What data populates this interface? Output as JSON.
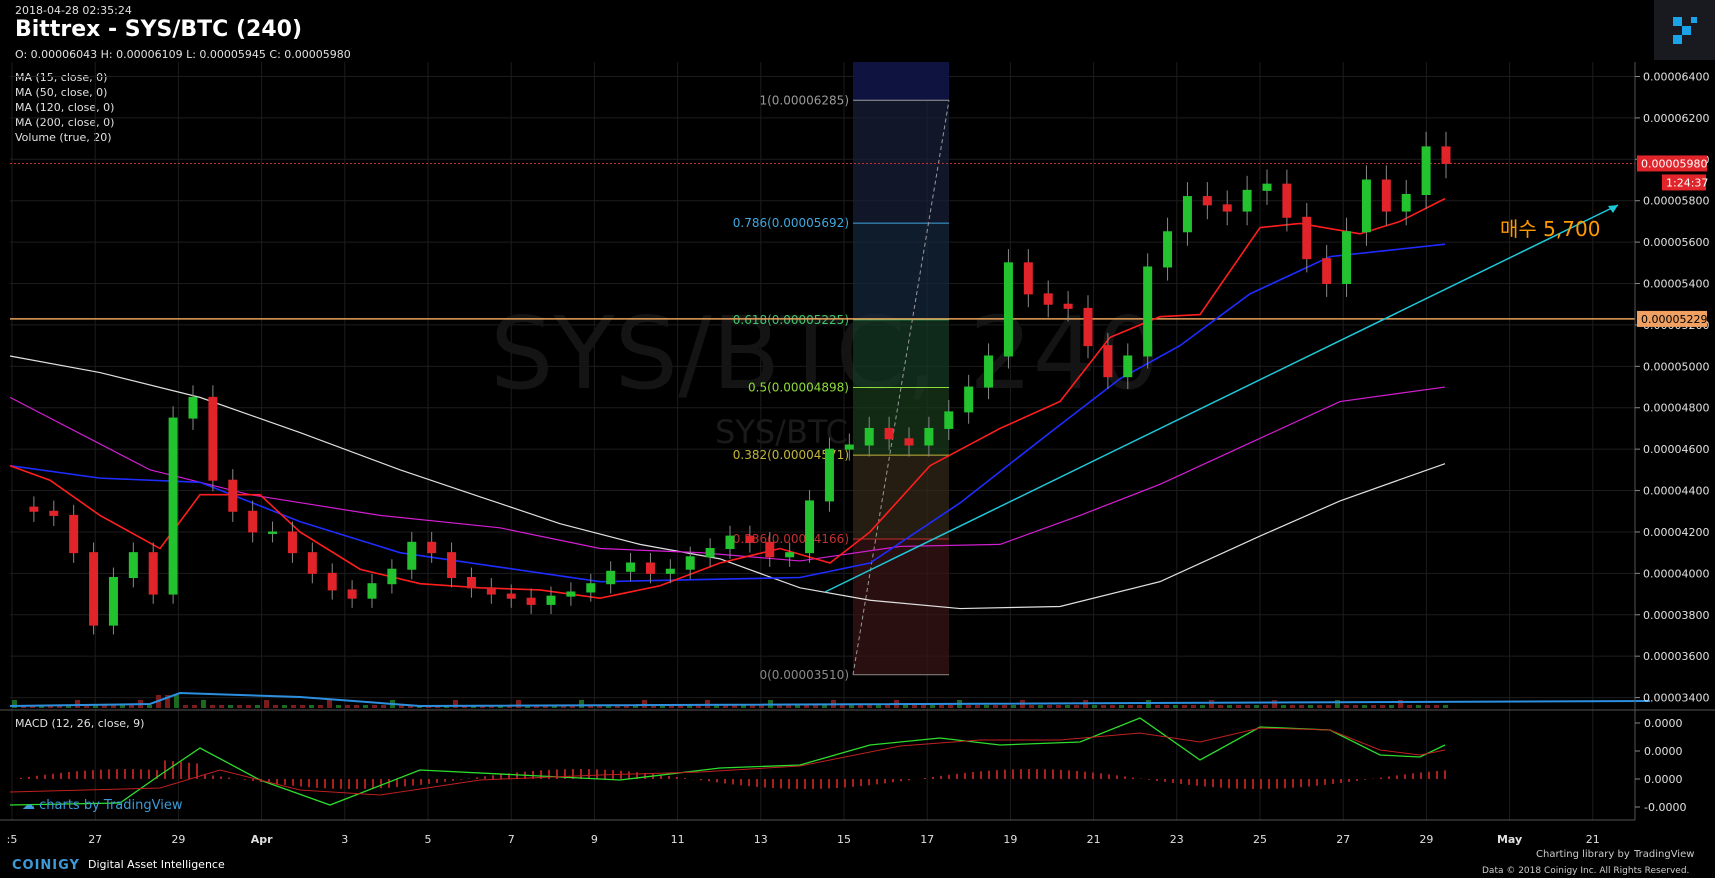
{
  "header": {
    "timestamp": "2018-04-28 02:35:24",
    "title": "Bittrex - SYS/BTC (240)",
    "ohlc": "O: 0.00006043 H: 0.00006109 L: 0.00005945 C: 0.00005980"
  },
  "indicators": [
    "MA (15, close, 0)",
    "MA (50, close, 0)",
    "MA (120, close, 0)",
    "MA (200, close, 0)",
    "Volume (true, 20)"
  ],
  "watermark": {
    "main": "SYS/BTC, 240",
    "sub": "SYS/BTC"
  },
  "macd_label": "MACD (12, 26, close, 9)",
  "footer": {
    "tv_brand": "charts by TradingView",
    "coinigy": "COINIGY",
    "coinigy_sub": "Digital Asset Intelligence",
    "charting_by": "Charting library by",
    "tv_small": "TradingView",
    "copyright": "Data © 2018   Coinigy Inc. All Rights Reserved."
  },
  "colors": {
    "up": "#22c32e",
    "down": "#e0242a",
    "ma15": "#ff1e1e",
    "ma50": "#1e2cff",
    "ma120": "#d41ed4",
    "ma200": "#e0e0e0",
    "trend": "#1fc8d8",
    "annotation": "#ff9900"
  },
  "chart_data": {
    "type": "candlestick",
    "price_axis": {
      "ticks": [
        "0.00006400",
        "0.00006200",
        "0.00006000",
        "0.00005800",
        "0.00005600",
        "0.00005400",
        "0.00005200",
        "0.00005000",
        "0.00004800",
        "0.00004600",
        "0.00004400",
        "0.00004200",
        "0.00004000",
        "0.00003800",
        "0.00003600",
        "0.00003400"
      ],
      "range": [
        3.34e-05,
        6.47e-05
      ],
      "last_price_label": "0.00005980",
      "countdown": "1:24:37",
      "hline_label": "0.00005229"
    },
    "time_axis": {
      "ticks": [
        ":5",
        "27",
        "29",
        "Apr",
        "3",
        "5",
        "7",
        "9",
        "11",
        "13",
        "15",
        "17",
        "19",
        "21",
        "23",
        "25",
        "27",
        "29",
        "May",
        "21"
      ]
    },
    "fibonacci": [
      {
        "label": "1(0.00006285)",
        "level": 1,
        "price": 6.285e-05
      },
      {
        "label": "0.786(0.00005692)",
        "level": 0.786,
        "price": 5.692e-05
      },
      {
        "label": "0.618(0.00005225)",
        "level": 0.618,
        "price": 5.225e-05
      },
      {
        "label": "0.5(0.00004898)",
        "level": 0.5,
        "price": 4.898e-05
      },
      {
        "label": "0.382(0.00004571)",
        "level": 0.382,
        "price": 4.571e-05
      },
      {
        "label": "0.236(0.00004166)",
        "level": 0.236,
        "price": 4.166e-05
      },
      {
        "label": "0(0.00003510)",
        "level": 0,
        "price": 3.51e-05
      }
    ],
    "annotation": "매수 5,700",
    "macd_axis": {
      "ticks": [
        "0.0000",
        "0.0000",
        "0.0000",
        "-0.0000"
      ]
    },
    "ma_sample_points": {
      "ma15_end": 5.81e-05,
      "ma50_end": 5.59e-05,
      "ma120_end": 4.9e-05,
      "ma200_end": 4.55e-05
    },
    "price_path": [
      4.32e-05,
      4.3e-05,
      4.28e-05,
      4.1e-05,
      3.75e-05,
      3.98e-05,
      4.1e-05,
      3.9e-05,
      4.75e-05,
      4.85e-05,
      4.45e-05,
      4.3e-05,
      4.2e-05,
      4.2e-05,
      4.1e-05,
      4e-05,
      3.92e-05,
      3.88e-05,
      3.95e-05,
      4.02e-05,
      4.15e-05,
      4.1e-05,
      3.98e-05,
      3.93e-05,
      3.9e-05,
      3.88e-05,
      3.85e-05,
      3.89e-05,
      3.91e-05,
      3.95e-05,
      4.01e-05,
      4.05e-05,
      4e-05,
      4.02e-05,
      4.08e-05,
      4.12e-05,
      4.18e-05,
      4.15e-05,
      4.08e-05,
      4.1e-05,
      4.35e-05,
      4.6e-05,
      4.62e-05,
      4.7e-05,
      4.65e-05,
      4.62e-05,
      4.7e-05,
      4.78e-05,
      4.9e-05,
      5.05e-05,
      5.5e-05,
      5.35e-05,
      5.3e-05,
      5.28e-05,
      5.1e-05,
      4.95e-05,
      5.05e-05,
      5.48e-05,
      5.65e-05,
      5.82e-05,
      5.78e-05,
      5.75e-05,
      5.85e-05,
      5.88e-05,
      5.72e-05,
      5.52e-05,
      5.4e-05,
      5.65e-05,
      5.9e-05,
      5.75e-05,
      5.83e-05,
      6.06e-05,
      5.98e-05
    ]
  }
}
